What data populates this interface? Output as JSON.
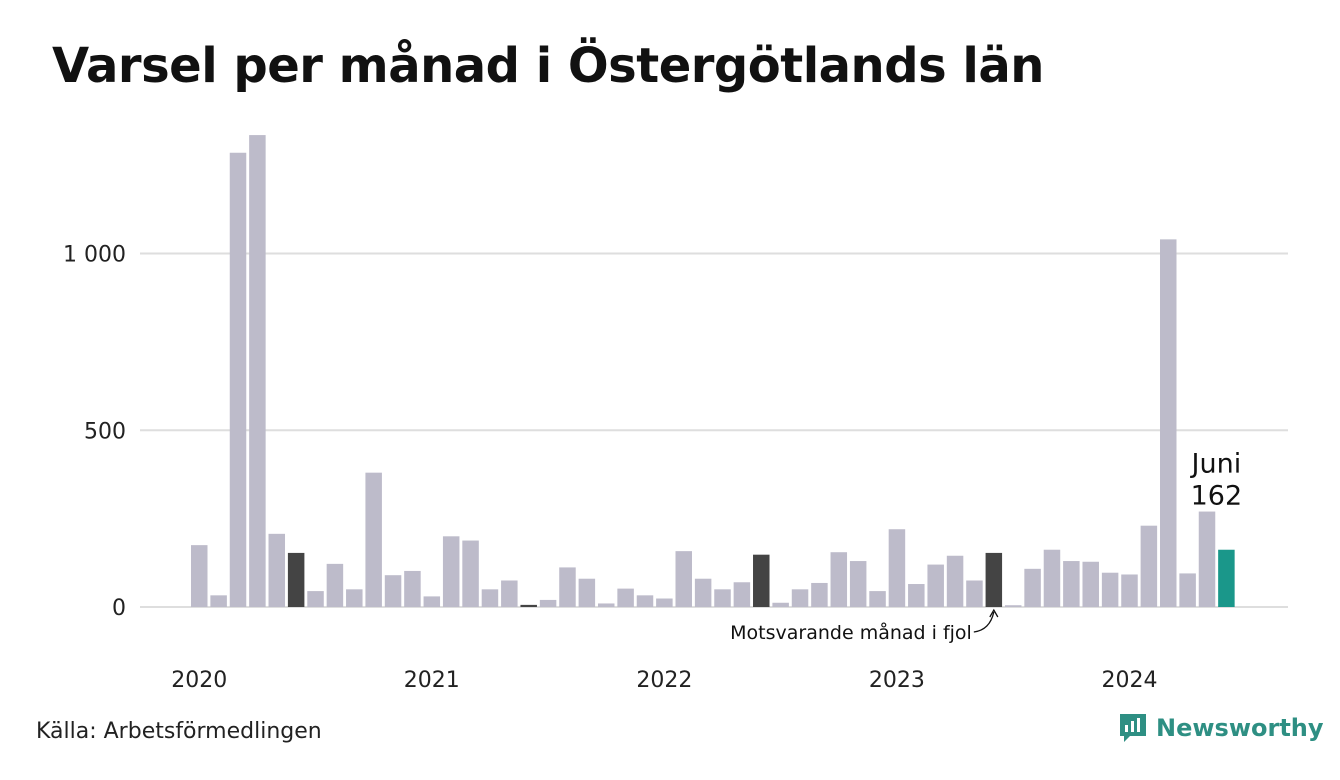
{
  "title": "Varsel per månad i Östergötlands län",
  "source": "Källa: Arbetsförmedlingen",
  "brand": {
    "name": "Newsworthy",
    "icon": "newsworthy-logo-icon"
  },
  "colors": {
    "bar": "#bdbbca",
    "highlight_previous_year": "#444444",
    "current": "#1a978a",
    "grid": "#dedede",
    "text": "#111111"
  },
  "chart_data": {
    "type": "bar",
    "ylim": [
      0,
      1340
    ],
    "y_ticks": [
      {
        "value": 0,
        "label": "0"
      },
      {
        "value": 500,
        "label": "500"
      },
      {
        "value": 1000,
        "label": "1 000"
      }
    ],
    "x_labels": [
      {
        "index": 0,
        "label": "2020"
      },
      {
        "index": 12,
        "label": "2021"
      },
      {
        "index": 24,
        "label": "2022"
      },
      {
        "index": 36,
        "label": "2023"
      },
      {
        "index": 48,
        "label": "2024"
      }
    ],
    "values": [
      175,
      33,
      1285,
      1335,
      207,
      153,
      45,
      122,
      50,
      380,
      90,
      102,
      30,
      200,
      188,
      50,
      75,
      6,
      20,
      112,
      80,
      10,
      52,
      33,
      24,
      158,
      80,
      50,
      70,
      148,
      12,
      50,
      68,
      155,
      130,
      45,
      220,
      65,
      120,
      145,
      75,
      153,
      5,
      108,
      162,
      130,
      128,
      97,
      92,
      230,
      1040,
      95,
      270,
      162
    ],
    "highlight_indices": [
      5,
      17,
      29,
      41
    ],
    "current_index": 53,
    "annotations": {
      "current": {
        "month": "Juni",
        "value": "162"
      },
      "previous": {
        "text": "Motsvarande månad i fjol"
      }
    }
  }
}
